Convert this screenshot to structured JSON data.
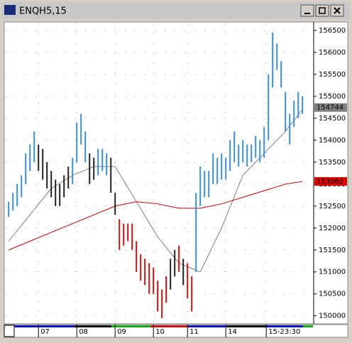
{
  "chart_data": {
    "type": "hilo",
    "title": "ENQH5,15",
    "x": [
      0,
      1,
      2,
      3,
      4,
      5,
      6,
      7,
      8,
      9,
      10,
      11,
      12,
      13,
      14,
      15,
      16,
      17,
      18,
      19,
      20,
      21,
      22,
      23,
      24,
      25,
      26,
      27,
      28,
      29,
      30,
      31,
      32,
      33,
      34,
      35,
      36,
      37,
      38,
      39,
      40,
      41,
      42,
      43,
      44,
      45,
      46,
      47,
      48,
      49,
      50,
      51,
      52,
      53,
      54,
      55,
      56,
      57,
      58,
      59,
      60,
      61,
      62,
      63,
      64,
      65,
      66,
      67,
      68,
      69
    ],
    "high": [
      152600,
      152800,
      153000,
      153200,
      153700,
      153900,
      154200,
      153900,
      153800,
      153500,
      153300,
      153100,
      153000,
      153200,
      153400,
      153600,
      154400,
      154600,
      154200,
      153700,
      153600,
      153800,
      153800,
      153700,
      153600,
      152800,
      152200,
      152100,
      152100,
      152100,
      151700,
      151400,
      151300,
      151200,
      151100,
      150800,
      150600,
      150900,
      151300,
      151500,
      151600,
      151300,
      151200,
      150900,
      152800,
      153400,
      153300,
      153300,
      153700,
      153600,
      153700,
      153600,
      154000,
      154200,
      153900,
      154000,
      153900,
      153900,
      154100,
      154000,
      154300,
      155500,
      156450,
      156200,
      155800,
      155100,
      154600,
      154900,
      155100,
      155000
    ],
    "low": [
      152250,
      152400,
      152500,
      152700,
      153000,
      153300,
      153500,
      153300,
      153100,
      152900,
      152700,
      152500,
      152500,
      152700,
      152900,
      153000,
      153500,
      153900,
      153500,
      153000,
      153100,
      153200,
      153300,
      153200,
      152800,
      152300,
      151500,
      151600,
      151700,
      151500,
      151000,
      150800,
      150700,
      150500,
      150500,
      150100,
      149950,
      150300,
      150600,
      150900,
      151000,
      150700,
      150400,
      150100,
      151000,
      152500,
      152700,
      152700,
      153000,
      153000,
      153100,
      153100,
      153300,
      153500,
      153400,
      153500,
      153400,
      153500,
      153600,
      153500,
      153600,
      154000,
      155200,
      155600,
      155200,
      154200,
      153900,
      154300,
      154500,
      154600
    ],
    "bar_colors": [
      "#3c8ee0",
      "#3c8ee0",
      "#3c8ee0",
      "#3c8ee0",
      "#3c8ee0",
      "#3c8ee0",
      "#3c8ee0",
      "#222222",
      "#222222",
      "#222222",
      "#222222",
      "#222222",
      "#222222",
      "#222222",
      "#222222",
      "#3c8ee0",
      "#3c8ee0",
      "#3c8ee0",
      "#3c8ee0",
      "#222222",
      "#222222",
      "#3c8ee0",
      "#3c8ee0",
      "#3c8ee0",
      "#222222",
      "#222222",
      "#d01010",
      "#d01010",
      "#d01010",
      "#d01010",
      "#d01010",
      "#d01010",
      "#d01010",
      "#d01010",
      "#d01010",
      "#d01010",
      "#d01010",
      "#d01010",
      "#222222",
      "#222222",
      "#d01010",
      "#222222",
      "#d01010",
      "#d01010",
      "#3c8ee0",
      "#3c8ee0",
      "#3c8ee0",
      "#3c8ee0",
      "#3c8ee0",
      "#3c8ee0",
      "#3c8ee0",
      "#3c8ee0",
      "#3c8ee0",
      "#3c8ee0",
      "#3c8ee0",
      "#3c8ee0",
      "#3c8ee0",
      "#3c8ee0",
      "#3c8ee0",
      "#3c8ee0",
      "#3c8ee0",
      "#3c8ee0",
      "#3c8ee0",
      "#3c8ee0",
      "#3c8ee0",
      "#3c8ee0",
      "#3c8ee0",
      "#3c8ee0",
      "#3c8ee0",
      "#3c8ee0"
    ],
    "lines": [
      {
        "color": "#808080",
        "x": [
          0,
          5,
          10,
          15,
          20,
          25,
          30,
          35,
          40,
          45,
          50,
          55,
          60,
          65,
          69
        ],
        "values": [
          151700,
          152300,
          152900,
          153200,
          153400,
          153400,
          152600,
          151800,
          151200,
          151000,
          152000,
          153200,
          153700,
          154200,
          154700
        ]
      },
      {
        "color": "#c00000",
        "x": [
          0,
          5,
          10,
          15,
          20,
          25,
          30,
          35,
          40,
          45,
          50,
          55,
          60,
          65,
          69
        ],
        "values": [
          151500,
          151700,
          151900,
          152100,
          152300,
          152500,
          152600,
          152550,
          152450,
          152450,
          152550,
          152700,
          152850,
          153000,
          153062
        ]
      }
    ],
    "markers": [
      {
        "value": 154744,
        "color": "#808080"
      },
      {
        "value": 153062,
        "color": "#e00000"
      }
    ],
    "xlim": [
      -0.7,
      71.3
    ],
    "ylim": [
      149850,
      156660
    ],
    "yticks": [
      150000,
      150500,
      151000,
      151500,
      152000,
      152500,
      153000,
      153500,
      154000,
      154500,
      155000,
      155500,
      156000,
      156500
    ],
    "xticks": [
      {
        "value": 7,
        "label": "07"
      },
      {
        "value": 16,
        "label": "08"
      },
      {
        "value": 25,
        "label": "09"
      },
      {
        "value": 34,
        "label": "10"
      },
      {
        "value": 42,
        "label": "11"
      },
      {
        "value": 51,
        "label": "14"
      },
      {
        "value": 60.5,
        "label": "15-23:30"
      }
    ],
    "grid": true
  }
}
